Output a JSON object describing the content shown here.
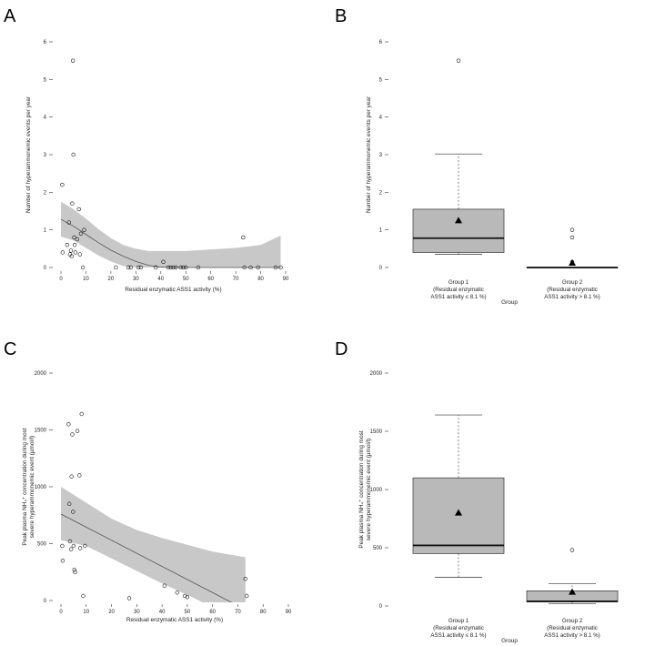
{
  "panel_letters": [
    "A",
    "B",
    "C",
    "D"
  ],
  "chart_data": [
    {
      "panel": "A",
      "type": "scatter",
      "xlabel": "Residual enzymatic ASS1 activity (%)",
      "ylabel": "Number of hyperammonemic events per year",
      "xlim": [
        0,
        90
      ],
      "ylim": [
        0,
        6
      ],
      "xticks": [
        0,
        10,
        20,
        30,
        40,
        50,
        60,
        70,
        80,
        90
      ],
      "yticks": [
        0,
        1,
        2,
        3,
        4,
        5,
        6
      ],
      "points": [
        {
          "x": 0.5,
          "y": 2.2
        },
        {
          "x": 0.7,
          "y": 0.4
        },
        {
          "x": 2.5,
          "y": 0.6
        },
        {
          "x": 3.2,
          "y": 1.2
        },
        {
          "x": 3.6,
          "y": 0.35
        },
        {
          "x": 4.0,
          "y": 0.45
        },
        {
          "x": 4.3,
          "y": 0.3
        },
        {
          "x": 4.5,
          "y": 1.7
        },
        {
          "x": 4.8,
          "y": 5.5
        },
        {
          "x": 5.0,
          "y": 3.0
        },
        {
          "x": 5.3,
          "y": 0.8
        },
        {
          "x": 5.5,
          "y": 0.6
        },
        {
          "x": 5.8,
          "y": 0.4
        },
        {
          "x": 6.5,
          "y": 0.75
        },
        {
          "x": 7.2,
          "y": 1.55
        },
        {
          "x": 7.6,
          "y": 0.35
        },
        {
          "x": 8.0,
          "y": 0.9
        },
        {
          "x": 8.8,
          "y": 0.0
        },
        {
          "x": 9.3,
          "y": 1.0
        },
        {
          "x": 22,
          "y": 0
        },
        {
          "x": 27,
          "y": 0
        },
        {
          "x": 28,
          "y": 0
        },
        {
          "x": 31,
          "y": 0
        },
        {
          "x": 32,
          "y": 0
        },
        {
          "x": 38,
          "y": 0
        },
        {
          "x": 41,
          "y": 0.15
        },
        {
          "x": 43,
          "y": 0
        },
        {
          "x": 44,
          "y": 0
        },
        {
          "x": 45,
          "y": 0
        },
        {
          "x": 46,
          "y": 0
        },
        {
          "x": 48,
          "y": 0
        },
        {
          "x": 49,
          "y": 0
        },
        {
          "x": 50,
          "y": 0
        },
        {
          "x": 55,
          "y": 0
        },
        {
          "x": 73,
          "y": 0.8
        },
        {
          "x": 73.5,
          "y": 0
        },
        {
          "x": 76,
          "y": 0
        },
        {
          "x": 79,
          "y": 0
        },
        {
          "x": 86,
          "y": 0
        },
        {
          "x": 88,
          "y": 0
        }
      ],
      "fit_line": [
        [
          0,
          1.28
        ],
        [
          5,
          1.1
        ],
        [
          10,
          0.88
        ],
        [
          15,
          0.66
        ],
        [
          20,
          0.46
        ],
        [
          25,
          0.3
        ],
        [
          30,
          0.16
        ],
        [
          35,
          0.06
        ],
        [
          40,
          0.01
        ],
        [
          45,
          0.0
        ],
        [
          50,
          0.0
        ],
        [
          55,
          0.0
        ],
        [
          60,
          0.0
        ],
        [
          70,
          0.0
        ],
        [
          80,
          0.0
        ],
        [
          88,
          0.0
        ]
      ],
      "band_upper": [
        [
          0,
          1.75
        ],
        [
          5,
          1.55
        ],
        [
          10,
          1.3
        ],
        [
          15,
          1.02
        ],
        [
          20,
          0.78
        ],
        [
          25,
          0.6
        ],
        [
          30,
          0.5
        ],
        [
          35,
          0.44
        ],
        [
          40,
          0.44
        ],
        [
          50,
          0.44
        ],
        [
          60,
          0.48
        ],
        [
          70,
          0.52
        ],
        [
          80,
          0.6
        ],
        [
          88,
          0.85
        ]
      ],
      "band_lower": [
        [
          0,
          0.82
        ],
        [
          5,
          0.72
        ],
        [
          10,
          0.52
        ],
        [
          15,
          0.32
        ],
        [
          20,
          0.16
        ],
        [
          25,
          0.04
        ],
        [
          30,
          0.0
        ],
        [
          88,
          0.0
        ]
      ]
    },
    {
      "panel": "B",
      "type": "box",
      "xlabel": "Group",
      "ylabel": "Number of hyperammonemic events per year",
      "ylim": [
        0,
        6
      ],
      "yticks": [
        0,
        1,
        2,
        3,
        4,
        5,
        6
      ],
      "groups": [
        {
          "label_lines": [
            "Group 1",
            "(Residual enzymatic",
            "ASS1 activity ≤ 8.1 %)"
          ],
          "whisker_low": 0.35,
          "q1": 0.4,
          "median": 0.78,
          "q3": 1.55,
          "whisker_high": 3.02,
          "mean": 1.25,
          "outliers": [
            5.5
          ]
        },
        {
          "label_lines": [
            "Group 2",
            "(Residual enzymatic",
            "ASS1 activity > 8.1 %)"
          ],
          "whisker_low": 0.0,
          "q1": 0.0,
          "median": 0.0,
          "q3": 0.0,
          "whisker_high": 0.0,
          "mean": 0.12,
          "outliers": [
            0.15,
            0.8,
            1.0
          ]
        }
      ]
    },
    {
      "panel": "C",
      "type": "scatter",
      "xlabel": "Residual enzymatic ASS1 activity (%)",
      "ylabel_lines": [
        "Peak plasma NH₄⁺ concentration during most",
        "severe hyperammonemic event (µmol/l)"
      ],
      "xlim": [
        0,
        90
      ],
      "ylim": [
        0,
        2000
      ],
      "xticks": [
        0,
        10,
        20,
        30,
        40,
        50,
        60,
        70,
        80,
        90
      ],
      "yticks": [
        0,
        500,
        1000,
        1500,
        2000
      ],
      "points": [
        {
          "x": 0.5,
          "y": 480
        },
        {
          "x": 0.7,
          "y": 350
        },
        {
          "x": 3.0,
          "y": 1550
        },
        {
          "x": 3.3,
          "y": 850
        },
        {
          "x": 3.6,
          "y": 520
        },
        {
          "x": 4.0,
          "y": 450
        },
        {
          "x": 4.2,
          "y": 1090
        },
        {
          "x": 4.5,
          "y": 1460
        },
        {
          "x": 4.8,
          "y": 780
        },
        {
          "x": 5.0,
          "y": 480
        },
        {
          "x": 5.3,
          "y": 270
        },
        {
          "x": 5.6,
          "y": 250
        },
        {
          "x": 6.5,
          "y": 1490
        },
        {
          "x": 7.3,
          "y": 1100
        },
        {
          "x": 7.6,
          "y": 460
        },
        {
          "x": 8.2,
          "y": 1640
        },
        {
          "x": 8.8,
          "y": 40
        },
        {
          "x": 9.5,
          "y": 480
        },
        {
          "x": 27,
          "y": 20
        },
        {
          "x": 41,
          "y": 130
        },
        {
          "x": 46,
          "y": 70
        },
        {
          "x": 49,
          "y": 40
        },
        {
          "x": 50,
          "y": 30
        },
        {
          "x": 73,
          "y": 190
        },
        {
          "x": 73.5,
          "y": 40
        }
      ],
      "fit_line": [
        [
          0,
          760
        ],
        [
          73,
          -80
        ]
      ],
      "band_upper": [
        [
          0,
          1000
        ],
        [
          10,
          860
        ],
        [
          20,
          720
        ],
        [
          30,
          620
        ],
        [
          40,
          550
        ],
        [
          50,
          490
        ],
        [
          60,
          430
        ],
        [
          73,
          380
        ]
      ],
      "band_lower": [
        [
          0,
          530
        ],
        [
          10,
          480
        ],
        [
          20,
          370
        ],
        [
          30,
          260
        ],
        [
          40,
          150
        ],
        [
          50,
          50
        ],
        [
          60,
          -60
        ],
        [
          73,
          -200
        ]
      ]
    },
    {
      "panel": "D",
      "type": "box",
      "xlabel": "Group",
      "ylabel_lines": [
        "Peak plasma NH₄⁺ concentration during most",
        "severe hyperammonemic event (µmol/l)"
      ],
      "ylim": [
        0,
        2000
      ],
      "yticks": [
        0,
        500,
        1000,
        1500,
        2000
      ],
      "groups": [
        {
          "label_lines": [
            "Group 1",
            "(Residual enzymatic",
            "ASS1 activity ≤ 8.1 %)"
          ],
          "whisker_low": 245,
          "q1": 450,
          "median": 520,
          "q3": 1100,
          "whisker_high": 1640,
          "mean": 800,
          "outliers": []
        },
        {
          "label_lines": [
            "Group 2",
            "(Residual enzymatic",
            "ASS1 activity > 8.1 %)"
          ],
          "whisker_low": 20,
          "q1": 35,
          "median": 40,
          "q3": 130,
          "whisker_high": 190,
          "mean": 120,
          "outliers": [
            480
          ]
        }
      ]
    }
  ]
}
